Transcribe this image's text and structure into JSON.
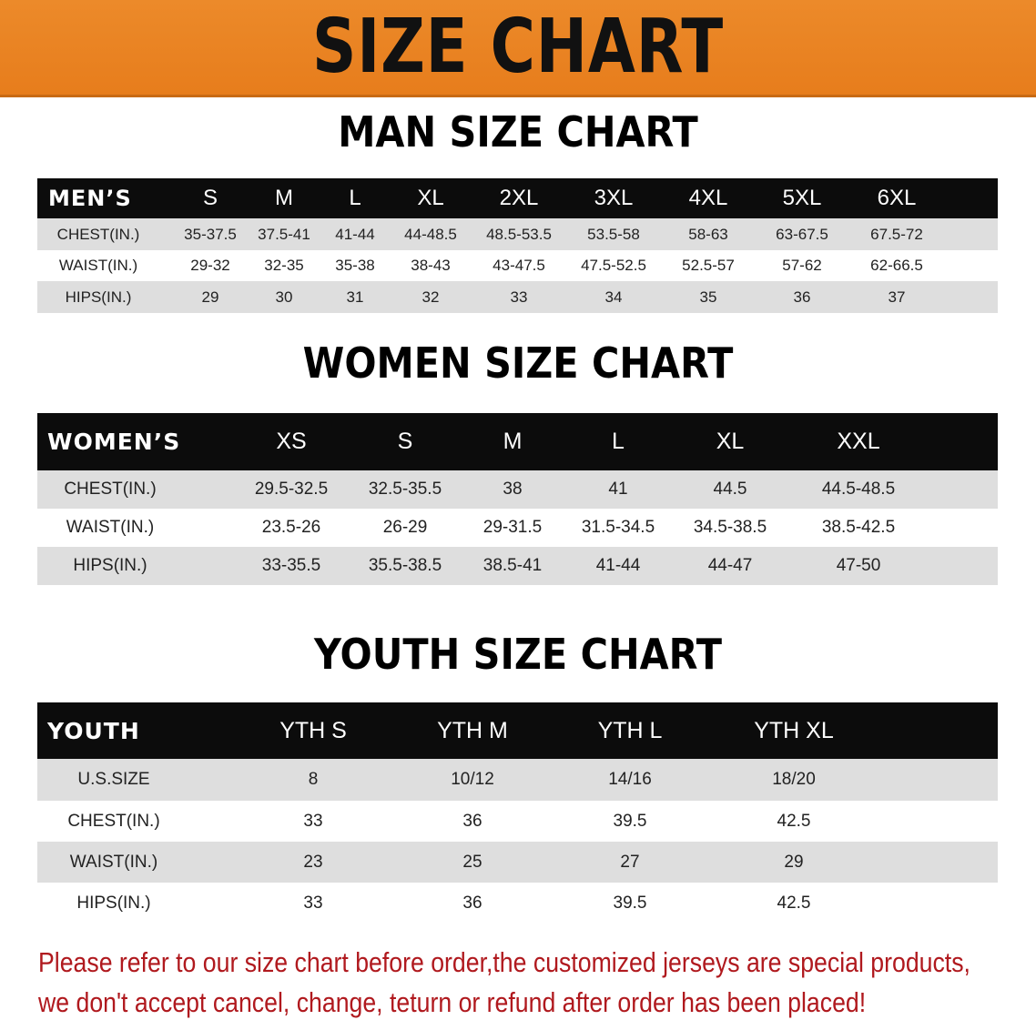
{
  "banner_title": "SIZE CHART",
  "men": {
    "title": "MAN SIZE CHART",
    "headers": [
      "MEN’S",
      "S",
      "M",
      "L",
      "XL",
      "2XL",
      "3XL",
      "4XL",
      "5XL",
      "6XL"
    ],
    "rows": [
      [
        "CHEST(IN.)",
        "35-37.5",
        "37.5-41",
        "41-44",
        "44-48.5",
        "48.5-53.5",
        "53.5-58",
        "58-63",
        "63-67.5",
        "67.5-72"
      ],
      [
        "WAIST(IN.)",
        "29-32",
        "32-35",
        "35-38",
        "38-43",
        "43-47.5",
        "47.5-52.5",
        "52.5-57",
        "57-62",
        "62-66.5"
      ],
      [
        "HIPS(IN.)",
        "29",
        "30",
        "31",
        "32",
        "33",
        "34",
        "35",
        "36",
        "37"
      ]
    ]
  },
  "women": {
    "title": "WOMEN SIZE CHART",
    "headers": [
      "WOMEN’S",
      "XS",
      "S",
      "M",
      "L",
      "XL",
      "XXL"
    ],
    "rows": [
      [
        "CHEST(IN.)",
        "29.5-32.5",
        "32.5-35.5",
        "38",
        "41",
        "44.5",
        "44.5-48.5"
      ],
      [
        "WAIST(IN.)",
        "23.5-26",
        "26-29",
        "29-31.5",
        "31.5-34.5",
        "34.5-38.5",
        "38.5-42.5"
      ],
      [
        "HIPS(IN.)",
        "33-35.5",
        "35.5-38.5",
        "38.5-41",
        "41-44",
        "44-47",
        "47-50"
      ]
    ]
  },
  "youth": {
    "title": "YOUTH SIZE CHART",
    "headers": [
      "YOUTH",
      "YTH S",
      "YTH M",
      "YTH L",
      "YTH XL"
    ],
    "rows": [
      [
        "U.S.SIZE",
        "8",
        "10/12",
        "14/16",
        "18/20"
      ],
      [
        "CHEST(IN.)",
        "33",
        "36",
        "39.5",
        "42.5"
      ],
      [
        "WAIST(IN.)",
        "23",
        "25",
        "27",
        "29"
      ],
      [
        "HIPS(IN.)",
        "33",
        "36",
        "39.5",
        "42.5"
      ]
    ]
  },
  "notice": {
    "line1": "Please refer to our size chart before order,the customized jerseys are special products,",
    "line2": "we don't accept cancel, change, teturn or refund after order has been placed!"
  },
  "colors": {
    "banner": "#e98322",
    "header_row": "#0c0c0c",
    "stripe": "#dedede",
    "notice": "#b0191e"
  }
}
